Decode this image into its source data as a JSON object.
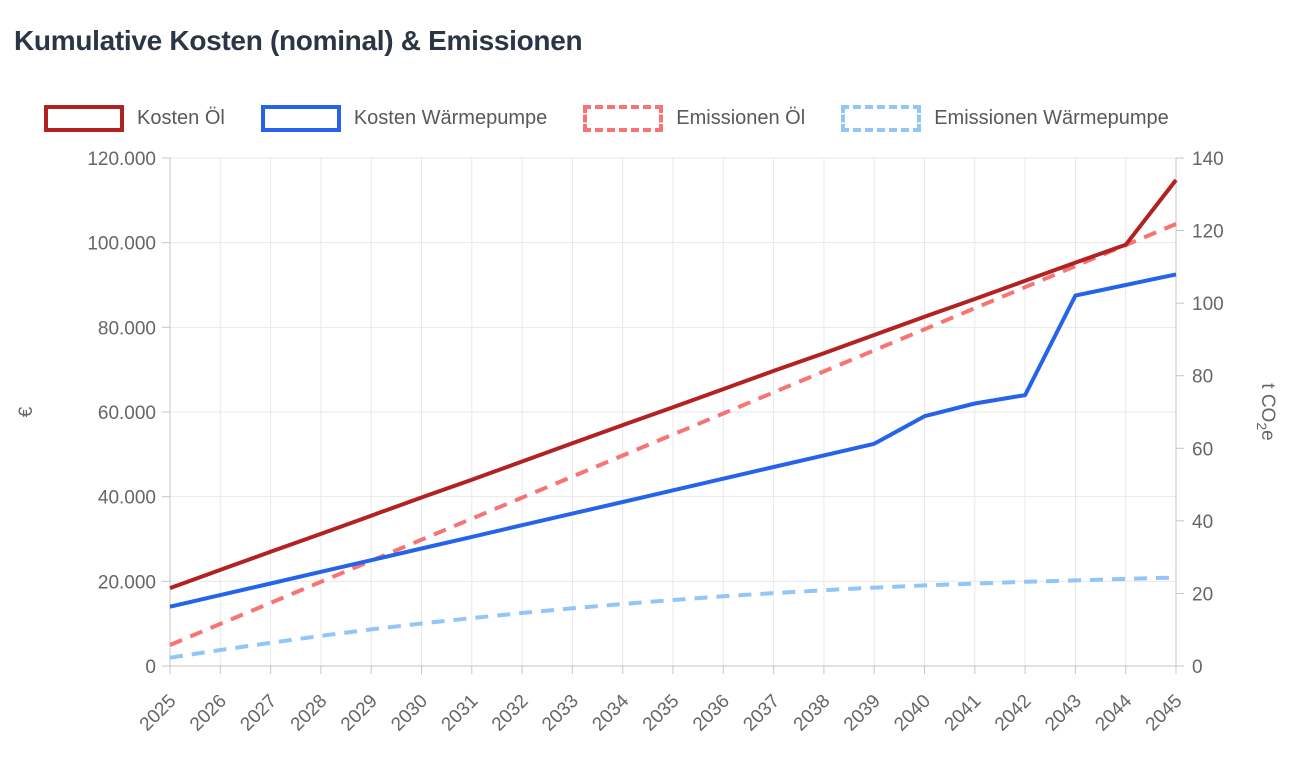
{
  "title": "Kumulative Kosten (nominal) & Emissionen",
  "colors": {
    "kosten_oel": "#b22222",
    "kosten_waermepumpe": "#2563eb",
    "emissionen_oel": "#f87373",
    "emissionen_waermepumpe": "#92c5f8",
    "grid": "#e8e8e8",
    "axis_border": "#c4c4c4",
    "tick_text": "#666666",
    "title_text": "#2a3645",
    "legend_text": "#595959"
  },
  "chart_data": {
    "type": "line",
    "x_labels": [
      "2025",
      "2026",
      "2027",
      "2028",
      "2029",
      "2030",
      "2031",
      "2032",
      "2033",
      "2034",
      "2035",
      "2036",
      "2037",
      "2038",
      "2039",
      "2040",
      "2041",
      "2042",
      "2043",
      "2044",
      "2045"
    ],
    "series": [
      {
        "name": "Kosten Öl",
        "axis": "left",
        "dash": false,
        "color": "#b22222",
        "values": [
          18400,
          22700,
          27000,
          31200,
          35500,
          39800,
          44000,
          48300,
          52600,
          56900,
          61100,
          65400,
          69700,
          73900,
          78200,
          82500,
          86700,
          91000,
          95300,
          99500,
          114800
        ]
      },
      {
        "name": "Kosten Wärmepumpe",
        "axis": "left",
        "dash": false,
        "color": "#2563eb",
        "values": [
          14000,
          16750,
          19500,
          22250,
          25000,
          27750,
          30500,
          33250,
          36000,
          38750,
          41500,
          44250,
          47000,
          49750,
          52500,
          59000,
          62000,
          64000,
          87500,
          90000,
          92500
        ]
      },
      {
        "name": "Emissionen Öl",
        "axis": "right",
        "dash": true,
        "color": "#f87373",
        "values": [
          5.8,
          11.6,
          17.4,
          23.2,
          29,
          34.8,
          40.6,
          46.4,
          52.2,
          58,
          63.8,
          69.6,
          75.4,
          81.2,
          87,
          92.8,
          98.6,
          104.4,
          110.2,
          116,
          121.8
        ]
      },
      {
        "name": "Emissionen Wärmepumpe",
        "axis": "right",
        "dash": true,
        "color": "#92c5f8",
        "values": [
          2.3,
          4.4,
          6.4,
          8.3,
          10.1,
          11.7,
          13.2,
          14.6,
          15.9,
          17.1,
          18.2,
          19.2,
          20.1,
          20.9,
          21.6,
          22.2,
          22.7,
          23.2,
          23.6,
          24,
          24.4
        ]
      }
    ],
    "left_axis": {
      "label": "€",
      "min": 0,
      "max": 120000,
      "tick_values": [
        0,
        20000,
        40000,
        60000,
        80000,
        100000,
        120000
      ],
      "tick_labels": [
        "0",
        "20.000",
        "40.000",
        "60.000",
        "80.000",
        "100.000",
        "120.000"
      ]
    },
    "right_axis": {
      "label": "t CO₂e",
      "min": 0,
      "max": 140,
      "tick_values": [
        0,
        20,
        40,
        60,
        80,
        100,
        120,
        140
      ],
      "tick_labels": [
        "0",
        "20",
        "40",
        "60",
        "80",
        "100",
        "120",
        "140"
      ]
    },
    "grid": true,
    "legend_position": "top",
    "x_tick_rotation_deg": -45
  }
}
